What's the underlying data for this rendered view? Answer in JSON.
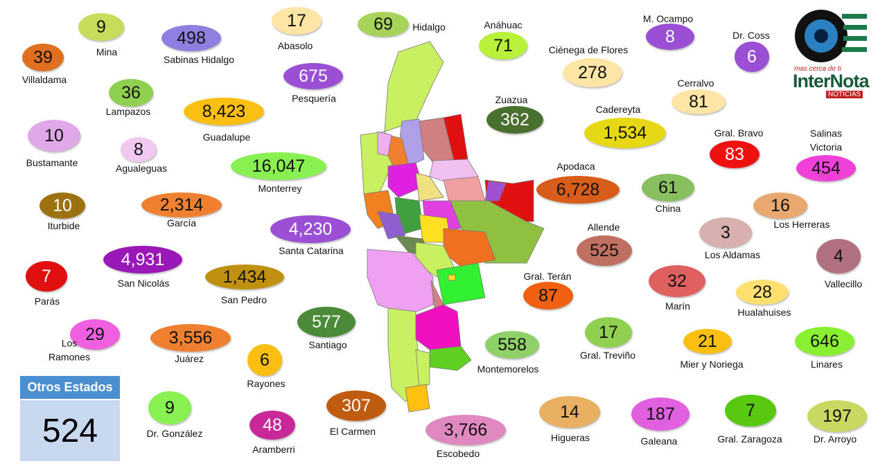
{
  "municipalities": [
    {
      "name": "Mina",
      "count": "9"
    },
    {
      "name": "Sabinas Hidalgo",
      "count": "498"
    },
    {
      "name": "Abasolo",
      "count": "17"
    },
    {
      "name": "Hidalgo",
      "count": "69"
    },
    {
      "name": "Anáhuac",
      "count": "71"
    },
    {
      "name": "M. Ocampo",
      "count": "8"
    },
    {
      "name": "Dr. Coss",
      "count": "6"
    },
    {
      "name": "Villaldama",
      "count": "39"
    },
    {
      "name": "Ciénega de Flores",
      "count": "278"
    },
    {
      "name": "Lampazos",
      "count": "36"
    },
    {
      "name": "Pesquería",
      "count": "675"
    },
    {
      "name": "Guadalupe",
      "count": "8,423"
    },
    {
      "name": "Zuazua",
      "count": "362"
    },
    {
      "name": "Cerralvo",
      "count": "81"
    },
    {
      "name": "Cadereyta",
      "count": "1,534"
    },
    {
      "name": "Gral. Bravo",
      "count": "83"
    },
    {
      "name": "Salinas Victoria",
      "count": "454"
    },
    {
      "name": "Bustamante",
      "count": "10"
    },
    {
      "name": "Agualeguas",
      "count": "8"
    },
    {
      "name": "Monterrey",
      "count": "16,047"
    },
    {
      "name": "Apodaca",
      "count": "6,728"
    },
    {
      "name": "China",
      "count": "61"
    },
    {
      "name": "Iturbide",
      "count": "10"
    },
    {
      "name": "García",
      "count": "2,314"
    },
    {
      "name": "Los Herreras",
      "count": "16"
    },
    {
      "name": "Santa Catarina",
      "count": "4,230"
    },
    {
      "name": "Allende",
      "count": "525"
    },
    {
      "name": "Los Aldamas",
      "count": "3"
    },
    {
      "name": "Vallecillo",
      "count": "4"
    },
    {
      "name": "Parás",
      "count": "7"
    },
    {
      "name": "San Nicolás",
      "count": "4,931"
    },
    {
      "name": "San Pedro",
      "count": "1,434"
    },
    {
      "name": "Gral. Terán",
      "count": "87"
    },
    {
      "name": "Marín",
      "count": "32"
    },
    {
      "name": "Hualahuises",
      "count": "28"
    },
    {
      "name": "Los Ramones",
      "count": "29"
    },
    {
      "name": "Juárez",
      "count": "3,556"
    },
    {
      "name": "Santiago",
      "count": "577"
    },
    {
      "name": "Gral. Treviño",
      "count": "17"
    },
    {
      "name": "Mier y Noriega",
      "count": "21"
    },
    {
      "name": "Linares",
      "count": "646"
    },
    {
      "name": "Rayones",
      "count": "6"
    },
    {
      "name": "Montemorelos",
      "count": "558"
    },
    {
      "name": "Dr. González",
      "count": "9"
    },
    {
      "name": "Aramberri",
      "count": "48"
    },
    {
      "name": "El Carmen",
      "count": "307"
    },
    {
      "name": "Escobedo",
      "count": "3,766"
    },
    {
      "name": "Higueras",
      "count": "14"
    },
    {
      "name": "Galeana",
      "count": "187"
    },
    {
      "name": "Gral. Zaragoza",
      "count": "7"
    },
    {
      "name": "Dr. Arroyo",
      "count": "197"
    }
  ],
  "other_states": {
    "title": "Otros Estados",
    "count": "524"
  },
  "logo": {
    "tagline": "mas cerca de ti",
    "name": "InterNota",
    "sub": "NOTICIAS"
  }
}
